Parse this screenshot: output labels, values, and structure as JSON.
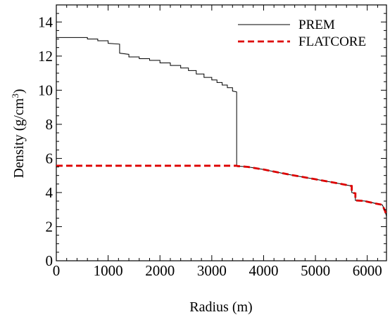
{
  "chart_data": {
    "type": "line",
    "title": "",
    "xlabel": "Radius (m)",
    "ylabel_main": "Density (g/cm",
    "ylabel_sup": "3",
    "ylabel_close": ")",
    "xlim": [
      0,
      6371
    ],
    "ylim": [
      0,
      15
    ],
    "xticks": [
      0,
      1000,
      2000,
      3000,
      4000,
      5000,
      6000
    ],
    "yticks": [
      0,
      2,
      4,
      6,
      8,
      10,
      12,
      14
    ],
    "grid": false,
    "legend": "top-right",
    "series": [
      {
        "name": "PREM",
        "color": "#000000",
        "style": "solid",
        "x": [
          0,
          600,
          600,
          800,
          800,
          1000,
          1000,
          1221.5,
          1221.5,
          1400,
          1400,
          1600,
          1600,
          1800,
          1800,
          2000,
          2000,
          2200,
          2200,
          2400,
          2400,
          2550,
          2550,
          2700,
          2700,
          2850,
          2850,
          3000,
          3000,
          3100,
          3100,
          3200,
          3200,
          3300,
          3300,
          3400,
          3400,
          3480,
          3480,
          3500,
          3630,
          3630,
          3700,
          4000,
          4500,
          5000,
          5500,
          5701,
          5701,
          5771,
          5771,
          5971,
          5971,
          6151,
          6151,
          6291,
          6346,
          6346,
          6371
        ],
        "y": [
          13.09,
          13.09,
          13.0,
          13.0,
          12.9,
          12.9,
          12.75,
          12.7,
          12.17,
          12.1,
          11.95,
          11.95,
          11.85,
          11.85,
          11.75,
          11.75,
          11.6,
          11.6,
          11.45,
          11.45,
          11.3,
          11.3,
          11.15,
          11.15,
          10.95,
          10.95,
          10.75,
          10.75,
          10.6,
          10.6,
          10.45,
          10.45,
          10.3,
          10.3,
          10.15,
          10.15,
          9.95,
          9.9,
          5.57,
          5.55,
          5.52,
          5.52,
          5.5,
          5.35,
          5.05,
          4.78,
          4.5,
          4.38,
          4.0,
          3.95,
          3.54,
          3.5,
          3.48,
          3.37,
          3.36,
          3.28,
          2.9,
          2.9,
          2.6
        ]
      },
      {
        "name": "FLATCORE",
        "color": "#dd0000",
        "style": "dashed",
        "x": [
          0,
          3480,
          3500,
          3630,
          3630,
          3700,
          4000,
          4500,
          5000,
          5500,
          5701,
          5701,
          5771,
          5771,
          5971,
          5971,
          6151,
          6151,
          6291,
          6346,
          6346,
          6371
        ],
        "y": [
          5.57,
          5.57,
          5.55,
          5.52,
          5.52,
          5.5,
          5.35,
          5.05,
          4.78,
          4.5,
          4.38,
          4.0,
          3.95,
          3.54,
          3.5,
          3.48,
          3.37,
          3.36,
          3.28,
          2.9,
          2.9,
          2.6
        ]
      }
    ]
  }
}
